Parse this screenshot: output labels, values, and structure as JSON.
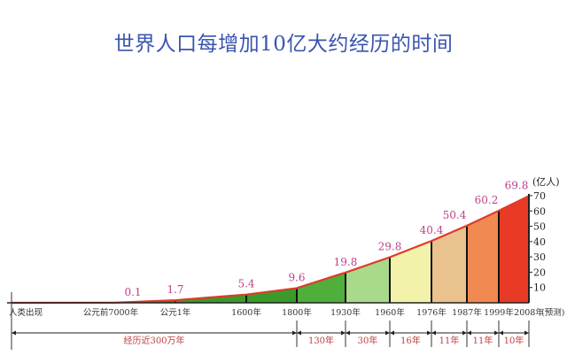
{
  "chart_data": {
    "type": "area",
    "title": "世界人口每增加10亿大约经历的时间",
    "ylabel": "(亿人)",
    "ylim": [
      0,
      70
    ],
    "yticks": [
      "10",
      "20",
      "30",
      "40",
      "50",
      "60",
      "70"
    ],
    "categories": [
      "人类出现",
      "公元前7000年",
      "公元1年",
      "1600年",
      "1800年",
      "1930年",
      "1960年",
      "1976年",
      "1987年",
      "1999年",
      "2008年"
    ],
    "forecast_note": "(预测)",
    "values": [
      0,
      0.1,
      1.7,
      5.4,
      9.6,
      19.8,
      29.8,
      40.4,
      50.4,
      60.2,
      69.8
    ],
    "value_labels": [
      "",
      "0.1",
      "1.7",
      "5.4",
      "9.6",
      "19.8",
      "29.8",
      "40.4",
      "50.4",
      "60.2",
      "69.8"
    ],
    "segment_colors": [
      "#2f8f2a",
      "#2f8f2a",
      "#3a9a2a",
      "#3a9a2a",
      "#4fae3c",
      "#a9d98a",
      "#f2f2aa",
      "#e9c28e",
      "#f08a52",
      "#e83a24"
    ],
    "curve_color": "#e03a2a",
    "durations": [
      {
        "label": "经历近300万年",
        "from": 0,
        "to": 4
      },
      {
        "label": "130年",
        "from": 4,
        "to": 5
      },
      {
        "label": "30年",
        "from": 5,
        "to": 6
      },
      {
        "label": "16年",
        "from": 6,
        "to": 7
      },
      {
        "label": "11年",
        "from": 7,
        "to": 8
      },
      {
        "label": "11年",
        "from": 8,
        "to": 9
      },
      {
        "label": "10年",
        "from": 9,
        "to": 10
      }
    ]
  }
}
